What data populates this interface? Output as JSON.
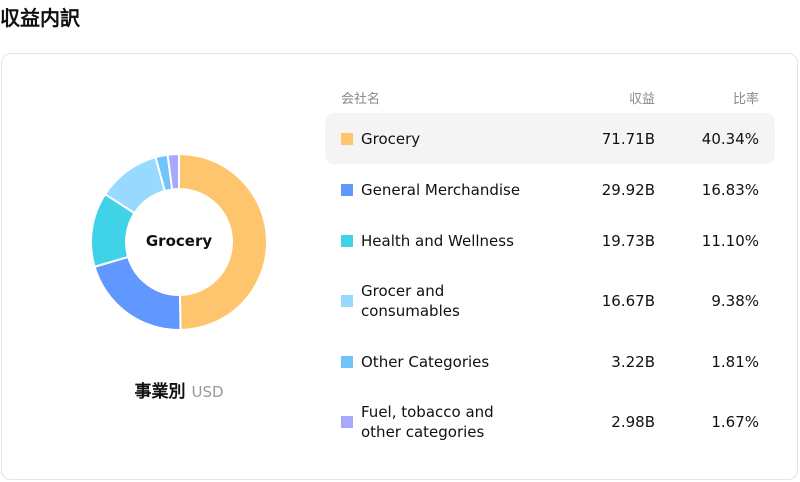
{
  "title": "収益内訳",
  "center_label": "Grocery",
  "caption": {
    "main": "事業別",
    "unit": "USD"
  },
  "headers": {
    "name": "会社名",
    "revenue": "収益",
    "ratio": "比率"
  },
  "chart_data": {
    "type": "pie",
    "title": "収益内訳",
    "donut": true,
    "categories": [
      "Grocery",
      "General Merchandise",
      "Health and Wellness",
      "Grocer and consumables",
      "Other Categories",
      "Fuel, tobacco and other categories"
    ],
    "values": [
      71.71,
      29.92,
      19.73,
      16.67,
      3.22,
      2.98
    ],
    "colors": [
      "#FFC46E",
      "#6098FF",
      "#40D2E6",
      "#98DAFF",
      "#70C4FA",
      "#A8A8FF"
    ],
    "rows": [
      {
        "name": "Grocery",
        "revenue": "71.71B",
        "ratio": "40.34%"
      },
      {
        "name": "General Merchandise",
        "revenue": "29.92B",
        "ratio": "16.83%"
      },
      {
        "name": "Health and Wellness",
        "revenue": "19.73B",
        "ratio": "11.10%"
      },
      {
        "name": "Grocer and consumables",
        "revenue": "16.67B",
        "ratio": "9.38%"
      },
      {
        "name": "Other Categories",
        "revenue": "3.22B",
        "ratio": "1.81%"
      },
      {
        "name": "Fuel, tobacco and other categories",
        "revenue": "2.98B",
        "ratio": "1.67%"
      }
    ]
  }
}
